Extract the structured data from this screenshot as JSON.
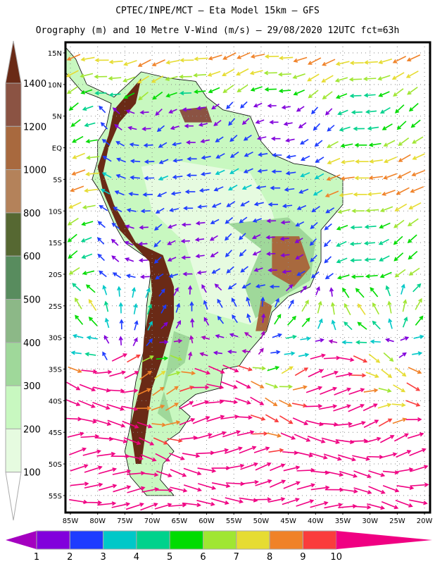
{
  "header": {
    "title": "CPTEC/INPE/MCT –  Eta Model 15km – GFS",
    "subtitle": "Orography (m) and 10 Metre V-Wind (m/s) – 29/08/2020 12UTC fct=63h"
  },
  "chart_data": {
    "type": "map",
    "lat_ticks": [
      "15N",
      "10N",
      "5N",
      "EQ",
      "5S",
      "10S",
      "15S",
      "20S",
      "25S",
      "30S",
      "35S",
      "40S",
      "45S",
      "50S",
      "55S"
    ],
    "lat_values": [
      15,
      10,
      5,
      0,
      -5,
      -10,
      -15,
      -20,
      -25,
      -30,
      -35,
      -40,
      -45,
      -50,
      -55
    ],
    "lon_ticks": [
      "85W",
      "80W",
      "75W",
      "70W",
      "65W",
      "60W",
      "55W",
      "50W",
      "45W",
      "40W",
      "35W",
      "30W",
      "25W",
      "20W"
    ],
    "lon_values": [
      -85,
      -80,
      -75,
      -70,
      -65,
      -60,
      -55,
      -50,
      -45,
      -40,
      -35,
      -30,
      -25,
      -20
    ],
    "orography_legend": {
      "labels": [
        "100",
        "200",
        "300",
        "400",
        "500",
        "600",
        "800",
        "1000",
        "1200",
        "1400"
      ],
      "colors": [
        "#ffffff",
        "#e6fbe0",
        "#c8f8c0",
        "#9fd89a",
        "#8cb887",
        "#588c5e",
        "#566832",
        "#b4825a",
        "#a8693e",
        "#8b5343",
        "#6a2a16"
      ]
    },
    "wind_legend": {
      "labels": [
        "1",
        "2",
        "3",
        "4",
        "5",
        "6",
        "7",
        "8",
        "9",
        "10"
      ],
      "colors": [
        "#a400c0",
        "#8200dc",
        "#1e3cff",
        "#00c8c8",
        "#00d28c",
        "#00dc00",
        "#a0e632",
        "#e6dc32",
        "#f08228",
        "#fa3c3c",
        "#f00082"
      ]
    }
  }
}
